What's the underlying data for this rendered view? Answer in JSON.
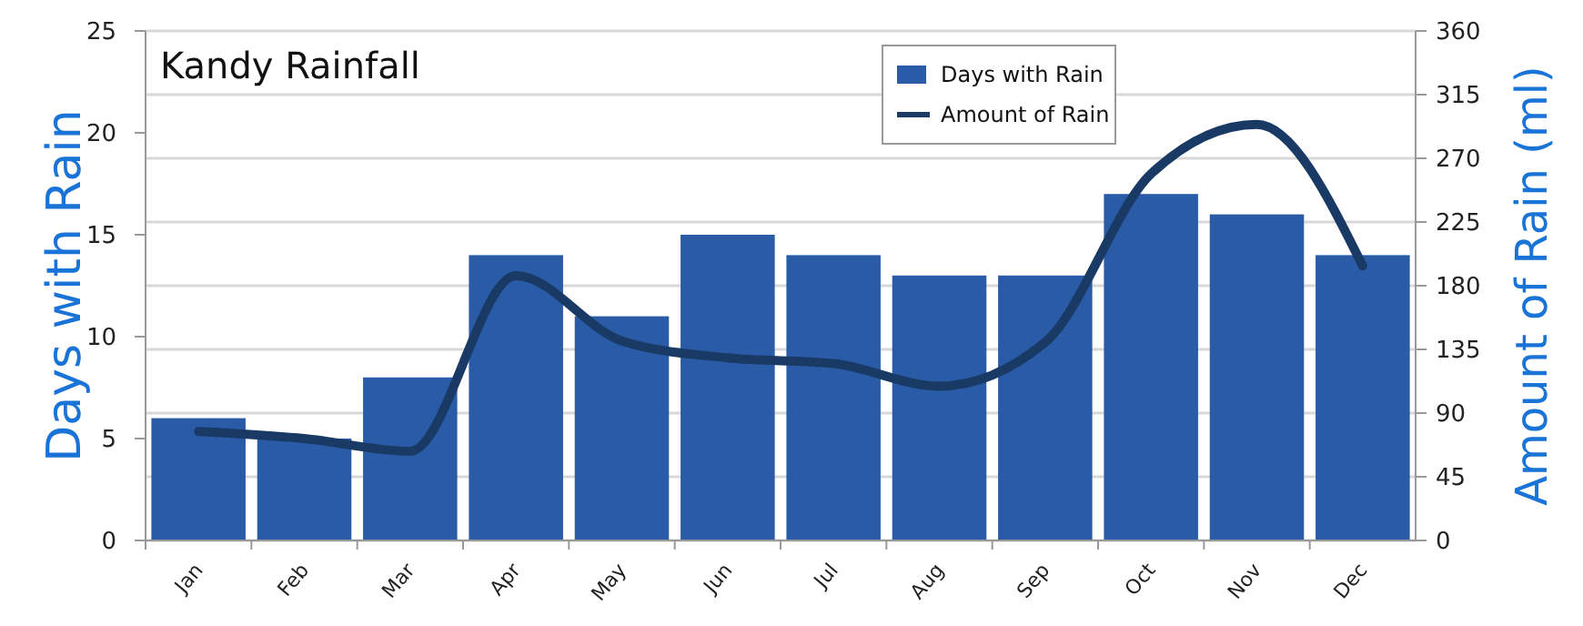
{
  "chart_data": {
    "type": "bar",
    "title": "Kandy Rainfall",
    "ylabel": "Days with Rain",
    "y2label": "Amount of Rain (ml)",
    "categories": [
      "Jan",
      "Feb",
      "Mar",
      "Apr",
      "May",
      "Jun",
      "Jul",
      "Aug",
      "Sep",
      "Oct",
      "Nov",
      "Dec"
    ],
    "series": [
      {
        "name": "Days with Rain",
        "color": "#2a5ba6",
        "values": [
          6,
          5,
          8,
          14,
          11,
          15,
          14,
          13,
          13,
          17,
          16,
          14
        ]
      },
      {
        "name": "Amount of Rain",
        "type": "line",
        "axis": "y2",
        "color": "#1a3a66",
        "values": [
          77,
          72,
          63,
          187,
          141,
          129,
          125,
          109,
          140,
          259,
          294,
          194
        ]
      }
    ],
    "ylim": [
      0,
      25
    ],
    "yticks": [
      0,
      5,
      10,
      15,
      20,
      25
    ],
    "y2lim": [
      0,
      360
    ],
    "y2ticks": [
      0,
      45,
      90,
      135,
      180,
      225,
      270,
      315,
      360
    ],
    "grid": "y",
    "legend": "top right"
  }
}
